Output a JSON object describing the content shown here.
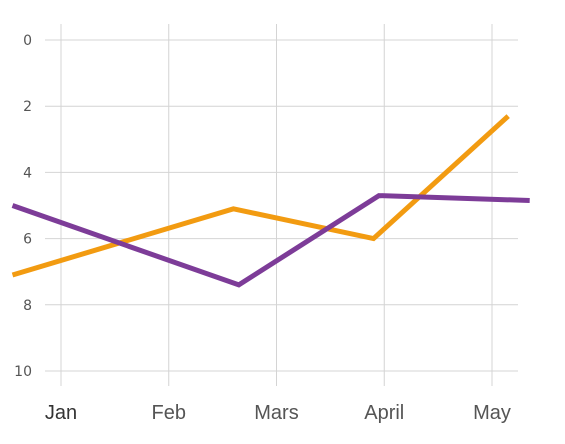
{
  "chart_data": {
    "type": "line",
    "categories": [
      "Jan",
      "Feb",
      "Mars",
      "April",
      "May"
    ],
    "y_ticks": [
      "0",
      "2",
      "4",
      "6",
      "8",
      "10"
    ],
    "ylim": [
      0,
      10
    ],
    "y_inverted": true,
    "grid": true,
    "legend": "none",
    "series": [
      {
        "color": "#f29b11",
        "points": [
          [
            -0.45,
            7.1
          ],
          [
            1.6,
            5.1
          ],
          [
            2.9,
            6.0
          ],
          [
            4.15,
            2.3
          ]
        ]
      },
      {
        "color": "#7d3c98",
        "points": [
          [
            -0.45,
            5.0
          ],
          [
            1.65,
            7.4
          ],
          [
            2.95,
            4.7
          ],
          [
            4.35,
            4.85
          ]
        ]
      }
    ]
  }
}
